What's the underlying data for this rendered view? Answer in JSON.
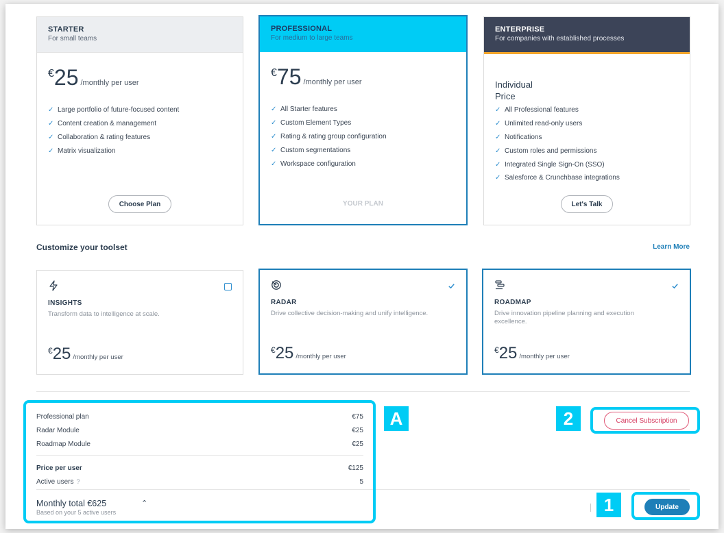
{
  "plans": [
    {
      "name": "STARTER",
      "subtitle": "For small teams",
      "currency": "€",
      "amount": "25",
      "period": "/monthly per user",
      "features": [
        "Large portfolio of future-focused content",
        "Content creation & management",
        "Collaboration & rating features",
        "Matrix visualization"
      ],
      "action": "Choose Plan"
    },
    {
      "name": "PROFESSIONAL",
      "subtitle": "For medium to large teams",
      "currency": "€",
      "amount": "75",
      "period": "/monthly per user",
      "features": [
        "All Starter features",
        "Custom Element Types",
        "Rating & rating group configuration",
        "Custom segmentations",
        "Workspace configuration"
      ],
      "action": "YOUR PLAN"
    },
    {
      "name": "ENTERPRISE",
      "subtitle": "For companies with established processes",
      "price_line1": "Individual",
      "price_line2": "Price",
      "features": [
        "All Professional features",
        "Unlimited read-only users",
        "Notifications",
        "Custom roles and permissions",
        "Integrated Single Sign-On (SSO)",
        "Salesforce & Crunchbase integrations"
      ],
      "action": "Let's Talk"
    }
  ],
  "customize": {
    "title": "Customize your toolset",
    "learn_more": "Learn More",
    "modules": [
      {
        "name": "INSIGHTS",
        "icon": "bolt-icon",
        "description": "Transform data to intelligence at scale.",
        "currency": "€",
        "amount": "25",
        "period": "/monthly per user",
        "selected": false
      },
      {
        "name": "RADAR",
        "icon": "radar-icon",
        "description": "Drive collective decision-making and unify intelligence.",
        "currency": "€",
        "amount": "25",
        "period": "/monthly per user",
        "selected": true
      },
      {
        "name": "ROADMAP",
        "icon": "roadmap-icon",
        "description": "Drive innovation pipeline planning and execution excellence.",
        "currency": "€",
        "amount": "25",
        "period": "/monthly per user",
        "selected": true
      }
    ]
  },
  "summary": {
    "lines": [
      {
        "label": "Professional plan",
        "value": "€75"
      },
      {
        "label": "Radar Module",
        "value": "€25"
      },
      {
        "label": "Roadmap Module",
        "value": "€25"
      }
    ],
    "price_per_user_label": "Price per user",
    "price_per_user_value": "€125",
    "active_users_label": "Active users",
    "active_users_value": "5",
    "total_title": "Monthly total €625",
    "total_sub": "Based on your 5 active users"
  },
  "actions": {
    "cancel": "Cancel Subscription",
    "update": "Update"
  },
  "annotations": {
    "a": "A",
    "one": "1",
    "two": "2"
  },
  "colors": {
    "accent": "#00ccf5",
    "primary": "#1e7fb8",
    "danger": "#d53a5f",
    "enterprise": "#3c4458"
  }
}
